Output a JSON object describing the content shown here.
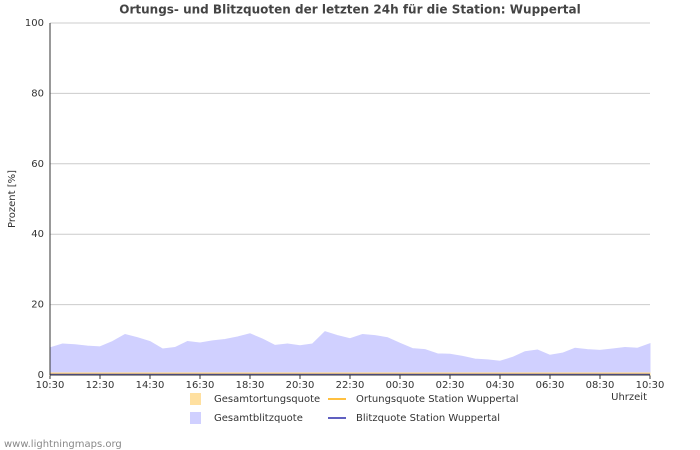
{
  "chart_data": {
    "type": "area",
    "title": "Ortungs- und Blitzquoten der letzten 24h für die Station: Wuppertal",
    "y_label": "Prozent   [%]",
    "x_label": "Uhrzeit",
    "footer": "www.lightningmaps.org",
    "x": [
      0,
      0.5,
      1,
      1.5,
      2,
      2.5,
      3,
      3.5,
      4,
      4.5,
      5,
      5.5,
      6,
      6.5,
      7,
      7.5,
      8,
      8.5,
      9,
      9.5,
      10,
      10.5,
      11,
      11.5,
      12,
      12.5,
      13,
      13.5,
      14,
      14.5,
      15,
      15.5,
      16,
      16.5,
      17,
      17.5,
      18,
      18.5,
      19,
      19.5,
      20,
      20.5,
      21,
      21.5,
      22,
      22.5,
      23,
      23.5,
      24
    ],
    "xlim": [
      0,
      24
    ],
    "xticks": [
      {
        "value": 0,
        "label": "10:30"
      },
      {
        "value": 2,
        "label": "12:30"
      },
      {
        "value": 4,
        "label": "14:30"
      },
      {
        "value": 6,
        "label": "16:30"
      },
      {
        "value": 8,
        "label": "18:30"
      },
      {
        "value": 10,
        "label": "20:30"
      },
      {
        "value": 12,
        "label": "22:30"
      },
      {
        "value": 14,
        "label": "00:30"
      },
      {
        "value": 16,
        "label": "02:30"
      },
      {
        "value": 18,
        "label": "04:30"
      },
      {
        "value": 20,
        "label": "06:30"
      },
      {
        "value": 22,
        "label": "08:30"
      },
      {
        "value": 24,
        "label": "10:30"
      }
    ],
    "ylim": [
      0,
      100
    ],
    "yticks": [
      0,
      20,
      40,
      60,
      80,
      100
    ],
    "grid": true,
    "series": [
      {
        "name": "Gesamtblitzquote",
        "kind": "area",
        "color": "#d0d0ff",
        "values": [
          7.7,
          8.8,
          8.6,
          8.2,
          8.0,
          9.5,
          11.5,
          10.6,
          9.5,
          7.4,
          7.8,
          9.5,
          9.1,
          9.7,
          10.1,
          10.8,
          11.7,
          10.2,
          8.4,
          8.8,
          8.3,
          8.8,
          12.3,
          11.2,
          10.3,
          11.5,
          11.2,
          10.6,
          9.0,
          7.5,
          7.2,
          6.0,
          5.9,
          5.3,
          4.5,
          4.3,
          3.9,
          5.0,
          6.6,
          7.1,
          5.6,
          6.2,
          7.6,
          7.2,
          7.0,
          7.4,
          7.8,
          7.6,
          8.9
        ]
      },
      {
        "name": "Gesamtortungsquote",
        "kind": "area",
        "color": "#ffe0a0",
        "values": [
          0.6,
          0.6,
          0.6,
          0.6,
          0.6,
          0.6,
          0.6,
          0.6,
          0.6,
          0.6,
          0.6,
          0.6,
          0.6,
          0.6,
          0.6,
          0.6,
          0.6,
          0.6,
          0.6,
          0.6,
          0.6,
          0.6,
          0.6,
          0.6,
          0.6,
          0.6,
          0.6,
          0.6,
          0.6,
          0.6,
          0.6,
          0.6,
          0.6,
          0.6,
          0.6,
          0.6,
          0.6,
          0.6,
          0.6,
          0.6,
          0.6,
          0.6,
          0.6,
          0.6,
          0.6,
          0.6,
          0.6,
          0.6,
          0.6
        ]
      },
      {
        "name": "Ortungsquote Station Wuppertal",
        "kind": "line",
        "color": "#ffc040",
        "values": [
          0.3,
          0.3,
          0.3,
          0.3,
          0.3,
          0.3,
          0.3,
          0.3,
          0.3,
          0.3,
          0.3,
          0.3,
          0.3,
          0.3,
          0.3,
          0.3,
          0.3,
          0.3,
          0.3,
          0.3,
          0.3,
          0.3,
          0.3,
          0.3,
          0.3,
          0.3,
          0.3,
          0.3,
          0.3,
          0.3,
          0.3,
          0.3,
          0.3,
          0.3,
          0.3,
          0.3,
          0.3,
          0.3,
          0.3,
          0.3,
          0.3,
          0.3,
          0.3,
          0.3,
          0.3,
          0.3,
          0.3,
          0.3,
          0.3
        ]
      },
      {
        "name": "Blitzquote Station Wuppertal",
        "kind": "line",
        "color": "#6060c0",
        "values": [
          0.2,
          0.2,
          0.2,
          0.2,
          0.2,
          0.2,
          0.2,
          0.2,
          0.2,
          0.2,
          0.2,
          0.2,
          0.2,
          0.2,
          0.2,
          0.2,
          0.2,
          0.2,
          0.2,
          0.2,
          0.2,
          0.2,
          0.2,
          0.2,
          0.2,
          0.2,
          0.2,
          0.2,
          0.2,
          0.2,
          0.2,
          0.2,
          0.2,
          0.2,
          0.2,
          0.2,
          0.2,
          0.2,
          0.2,
          0.2,
          0.2,
          0.2,
          0.2,
          0.2,
          0.2,
          0.2,
          0.2,
          0.2,
          0.2
        ]
      }
    ]
  }
}
